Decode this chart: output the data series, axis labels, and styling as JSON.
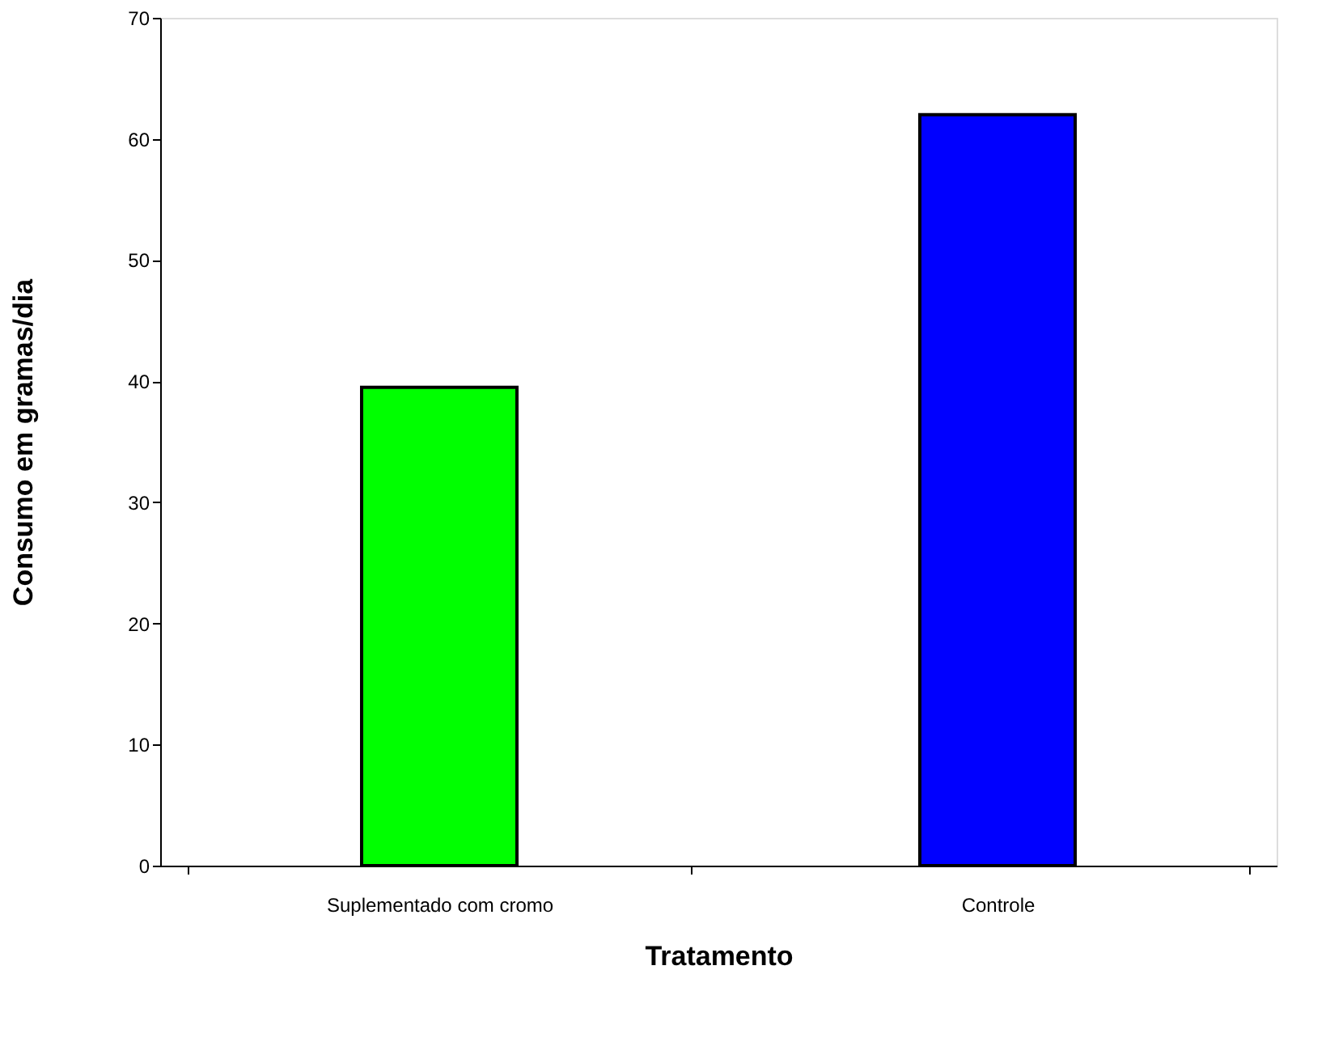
{
  "chart_data": {
    "type": "bar",
    "xlabel": "Tratamento",
    "ylabel": "Consumo em gramas/dia",
    "categories": [
      "Suplementado com cromo",
      "Controle"
    ],
    "values": [
      39.5,
      62
    ],
    "colors": [
      "#00ff00",
      "#0000ff"
    ],
    "ylim": [
      0,
      70
    ],
    "yticks": [
      0,
      10,
      20,
      30,
      40,
      50,
      60,
      70
    ],
    "grid": false
  }
}
